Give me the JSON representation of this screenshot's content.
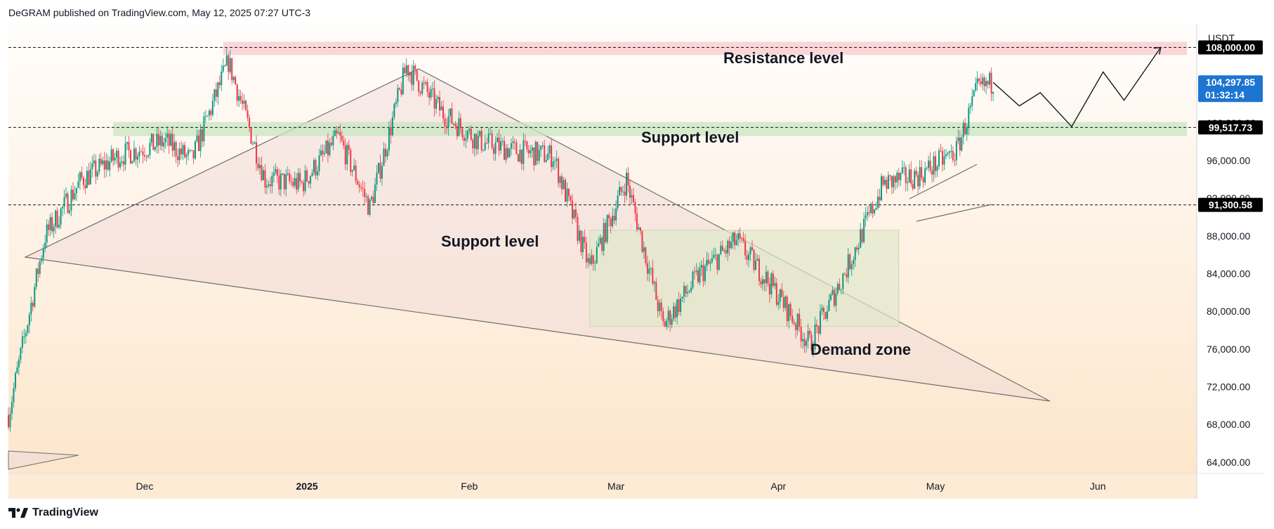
{
  "header": {
    "publisher": "DeGRAM published on TradingView.com, May 12, 2025 07:27 UTC-3"
  },
  "footer": {
    "brand": "TradingView"
  },
  "price_scale": {
    "currency": "USDT"
  },
  "chart_data": {
    "type": "candlestick",
    "symbol_quote": "USDT",
    "x_ticks": [
      "Dec",
      "2025",
      "Feb",
      "Mar",
      "Apr",
      "May",
      "Jun"
    ],
    "y_ticks": [
      64000,
      68000,
      72000,
      76000,
      80000,
      84000,
      88000,
      92000,
      96000,
      100000
    ],
    "y_tick_labels": [
      "64,000.00",
      "68,000.00",
      "72,000.00",
      "76,000.00",
      "80,000.00",
      "84,000.00",
      "88,000.00",
      "92,000.00",
      "96,000.00",
      "100,000.00"
    ],
    "ylim": [
      62800,
      110500
    ],
    "price_labels": [
      {
        "id": "resistance",
        "value": 108000,
        "text": "108,000.00",
        "color": "#000000"
      },
      {
        "id": "support-upper",
        "value": 99517.73,
        "text": "99,517.73",
        "color": "#000000"
      },
      {
        "id": "support-lower",
        "value": 91300.58,
        "text": "91,300.58",
        "color": "#000000"
      },
      {
        "id": "last-price",
        "value": 104297.85,
        "text": "104,297.85",
        "sub": "01:32:14",
        "color": "#1e74d1"
      }
    ],
    "annotations": [
      {
        "id": "resistance-label",
        "text": "Resistance level"
      },
      {
        "id": "support-label-upper",
        "text": "Support level"
      },
      {
        "id": "support-label-lower",
        "text": "Support level"
      },
      {
        "id": "demand-label",
        "text": "Demand zone"
      }
    ],
    "zones": [
      {
        "id": "resistance-zone",
        "from": 107200,
        "to": 108600,
        "color": "#f8c9cc"
      },
      {
        "id": "support-zone",
        "from": 98600,
        "to": 100100,
        "color": "#c8e6c0"
      },
      {
        "id": "demand-zone",
        "from": 78400,
        "to": 88600,
        "color": "#dfe8cc"
      }
    ],
    "series_approx": [
      [
        "2024-11-05",
        69000
      ],
      [
        "2024-11-12",
        88000
      ],
      [
        "2024-11-19",
        94000
      ],
      [
        "2024-11-26",
        96500
      ],
      [
        "2024-12-05",
        98000
      ],
      [
        "2024-12-10",
        96000
      ],
      [
        "2024-12-17",
        106500
      ],
      [
        "2024-12-24",
        94000
      ],
      [
        "2024-12-31",
        93500
      ],
      [
        "2025-01-07",
        98500
      ],
      [
        "2025-01-13",
        91000
      ],
      [
        "2025-01-20",
        106000
      ],
      [
        "2025-01-27",
        101000
      ],
      [
        "2025-02-03",
        98000
      ],
      [
        "2025-02-10",
        97000
      ],
      [
        "2025-02-17",
        96500
      ],
      [
        "2025-02-24",
        84500
      ],
      [
        "2025-03-03",
        94000
      ],
      [
        "2025-03-10",
        78500
      ],
      [
        "2025-03-17",
        84000
      ],
      [
        "2025-03-24",
        87500
      ],
      [
        "2025-03-31",
        82500
      ],
      [
        "2025-04-07",
        76500
      ],
      [
        "2025-04-14",
        84500
      ],
      [
        "2025-04-21",
        93500
      ],
      [
        "2025-04-28",
        94500
      ],
      [
        "2025-05-05",
        97000
      ],
      [
        "2025-05-09",
        103500
      ],
      [
        "2025-05-12",
        104297.85
      ]
    ],
    "projection": [
      104297.85,
      101800,
      103200,
      99600,
      105400,
      102400,
      108000
    ]
  }
}
